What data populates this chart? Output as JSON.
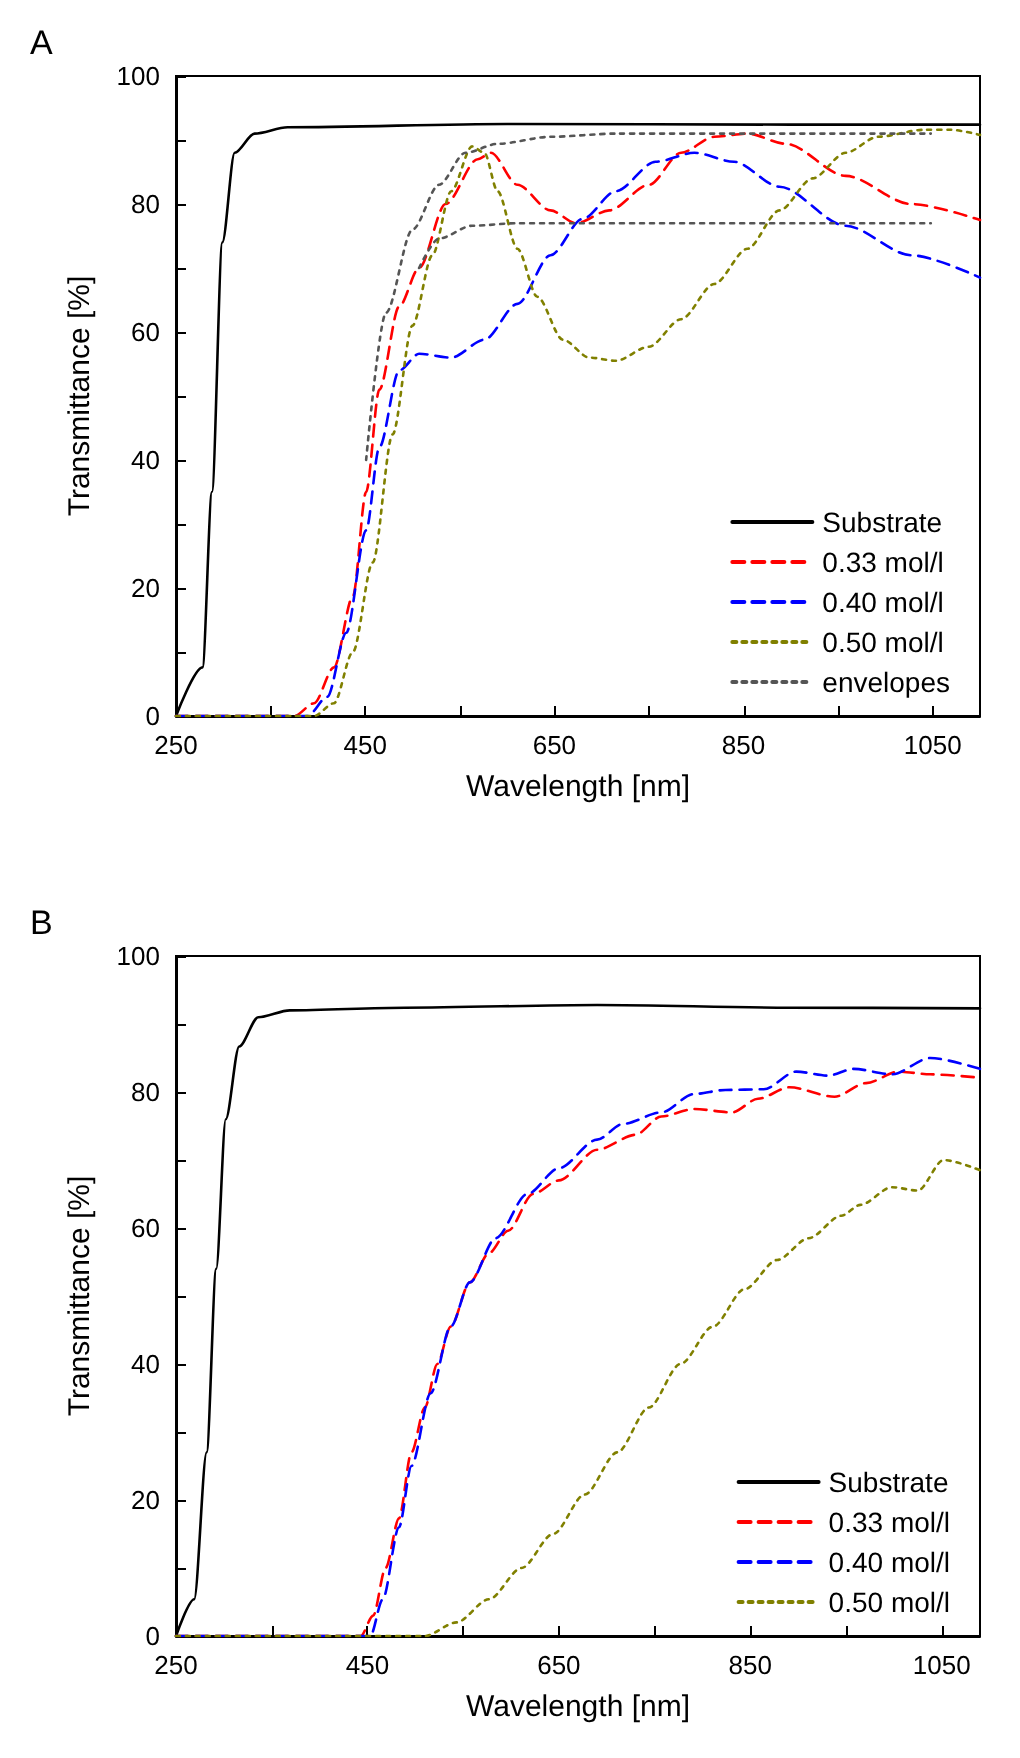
{
  "chart_data": [
    {
      "type": "line",
      "title": "A",
      "xlabel": "Wavelength [nm]",
      "ylabel": "Transmittance [%]",
      "xlim": [
        250,
        1100
      ],
      "ylim": [
        0,
        100
      ],
      "xticks": [
        250,
        {
          "value": 350,
          "label": null
        },
        450,
        {
          "value": 550,
          "label": null
        },
        650,
        {
          "value": 750,
          "label": null
        },
        850,
        {
          "value": 950,
          "label": null
        },
        1050
      ],
      "yticks": [
        0,
        {
          "value": 10,
          "label": null
        },
        20,
        {
          "value": 30,
          "label": null
        },
        40,
        {
          "value": 50,
          "label": null
        },
        60,
        {
          "value": 70,
          "label": null
        },
        80,
        {
          "value": 90,
          "label": null
        },
        100
      ],
      "legend": "bottom right",
      "marker": "none",
      "series": [
        {
          "name": "Substrate",
          "color": "#000000",
          "line_style": "solid",
          "x": [
            250,
            278,
            288,
            299,
            312,
            333,
            368,
            600,
            900,
            1100
          ],
          "values": [
            0,
            7.6,
            35,
            74,
            88,
            91,
            92,
            92.5,
            92.4,
            92.4
          ]
        },
        {
          "name": "0.33 mol/l",
          "color": "#ff0000",
          "line_style": "dashed",
          "x": [
            250,
            375,
            396,
            417,
            437,
            451,
            465,
            486,
            507,
            535,
            569,
            583,
            611,
            646,
            673,
            708,
            750,
            784,
            819,
            854,
            895,
            958,
            1027,
            1100
          ],
          "values": [
            0,
            0,
            2,
            7.6,
            18.7,
            35,
            51,
            64,
            70,
            80,
            87,
            88,
            83,
            79,
            77,
            79,
            83,
            88,
            90.5,
            91,
            89.4,
            84.4,
            80,
            77.5
          ]
        },
        {
          "name": "0.40 mol/l",
          "color": "#0000ff",
          "line_style": "dashed",
          "x": [
            250,
            389,
            410,
            430,
            451,
            465,
            486,
            507,
            541,
            576,
            611,
            646,
            680,
            715,
            757,
            798,
            840,
            888,
            958,
            1027,
            1100
          ],
          "values": [
            0,
            0,
            3,
            13,
            29,
            42,
            54,
            56.6,
            56,
            58.8,
            64.4,
            72,
            77.7,
            82,
            86.6,
            88,
            86.6,
            82.7,
            76.6,
            72,
            68.5
          ]
        },
        {
          "name": "0.50 mol/l",
          "color": "#808000",
          "line_style": "dotted",
          "x": [
            250,
            396,
            417,
            437,
            458,
            479,
            500,
            521,
            541,
            563,
            576,
            590,
            611,
            632,
            659,
            687,
            715,
            750,
            784,
            819,
            854,
            888,
            923,
            958,
            992,
            1041,
            1069,
            1100
          ],
          "values": [
            0,
            0,
            2,
            10,
            24,
            44,
            61,
            72,
            82,
            89,
            88,
            82,
            73,
            65.5,
            58.8,
            56,
            55.5,
            57.7,
            62,
            67.5,
            73,
            79,
            84,
            88,
            90.5,
            91.6,
            91.6,
            90.8
          ]
        },
        {
          "name": "envelopes",
          "color": "#555555",
          "line_style": "dotted",
          "x": [
            451,
            472,
            500,
            528,
            556,
            590,
            646,
            715,
            1048
          ],
          "values": [
            40,
            63,
            76,
            83,
            88,
            89.4,
            90.5,
            91,
            91
          ]
        },
        {
          "color": "#555555",
          "line_style": "dotted",
          "x": [
            507,
            528,
            563,
            611,
            1048
          ],
          "values": [
            70,
            74.6,
            76.6,
            77,
            77
          ]
        }
      ]
    },
    {
      "type": "line",
      "title": "B",
      "xlabel": "Wavelength [nm]",
      "ylabel": "Transmittance [%]",
      "xlim": [
        250,
        1090
      ],
      "ylim": [
        0,
        100
      ],
      "xticks": [
        250,
        {
          "value": 350,
          "label": null
        },
        450,
        {
          "value": 550,
          "label": null
        },
        650,
        {
          "value": 750,
          "label": null
        },
        850,
        {
          "value": 950,
          "label": null
        },
        1050
      ],
      "yticks": [
        0,
        {
          "value": 10,
          "label": null
        },
        20,
        {
          "value": 30,
          "label": null
        },
        40,
        {
          "value": 50,
          "label": null
        },
        60,
        {
          "value": 70,
          "label": null
        },
        80,
        {
          "value": 90,
          "label": null
        },
        100
      ],
      "legend": "bottom right",
      "marker": "none",
      "series": [
        {
          "name": "Substrate",
          "color": "#000000",
          "line_style": "solid",
          "x": [
            250,
            269,
            282,
            292,
            302,
            316,
            336,
            369,
            489,
            690,
            891,
            1090
          ],
          "values": [
            0,
            5.4,
            27,
            54,
            76,
            86.7,
            91,
            92,
            92.4,
            92.8,
            92.4,
            92.3
          ]
        },
        {
          "name": "0.33 mol/l",
          "color": "#ff0000",
          "line_style": "dashed",
          "x": [
            250,
            443,
            456,
            469,
            483,
            496,
            510,
            523,
            537,
            557,
            577,
            597,
            623,
            650,
            690,
            730,
            757,
            791,
            831,
            858,
            891,
            938,
            971,
            1005,
            1038,
            1090
          ],
          "values": [
            0,
            0,
            3,
            10,
            17.3,
            27,
            33.6,
            40,
            45.5,
            52,
            56.3,
            59.6,
            65,
            67,
            71.5,
            73.7,
            76.4,
            77.5,
            77,
            79,
            80.7,
            79.3,
            81.3,
            83,
            82.6,
            82.1
          ]
        },
        {
          "name": "0.40 mol/l",
          "color": "#0000ff",
          "line_style": "dashed",
          "x": [
            250,
            453,
            466,
            483,
            496,
            516,
            537,
            557,
            584,
            617,
            650,
            690,
            717,
            757,
            791,
            824,
            864,
            898,
            931,
            958,
            998,
            1038,
            1090
          ],
          "values": [
            0,
            0,
            5.4,
            16,
            25,
            35.7,
            45.5,
            52,
            58.5,
            65,
            68.8,
            73,
            75.3,
            77,
            79.7,
            80.3,
            80.4,
            83,
            82.4,
            83.4,
            82.6,
            85,
            83.4
          ]
        },
        {
          "name": "0.50 mol/l",
          "color": "#808000",
          "line_style": "dotted",
          "x": [
            250,
            510,
            543,
            577,
            611,
            644,
            677,
            711,
            744,
            777,
            811,
            844,
            878,
            911,
            945,
            965,
            998,
            1025,
            1052,
            1090
          ],
          "values": [
            0,
            0,
            2,
            5.4,
            10,
            15,
            20.8,
            27,
            33.6,
            40,
            45.5,
            51,
            55.3,
            58.5,
            61.8,
            63.4,
            66,
            65.5,
            70,
            68.5
          ]
        }
      ]
    }
  ]
}
